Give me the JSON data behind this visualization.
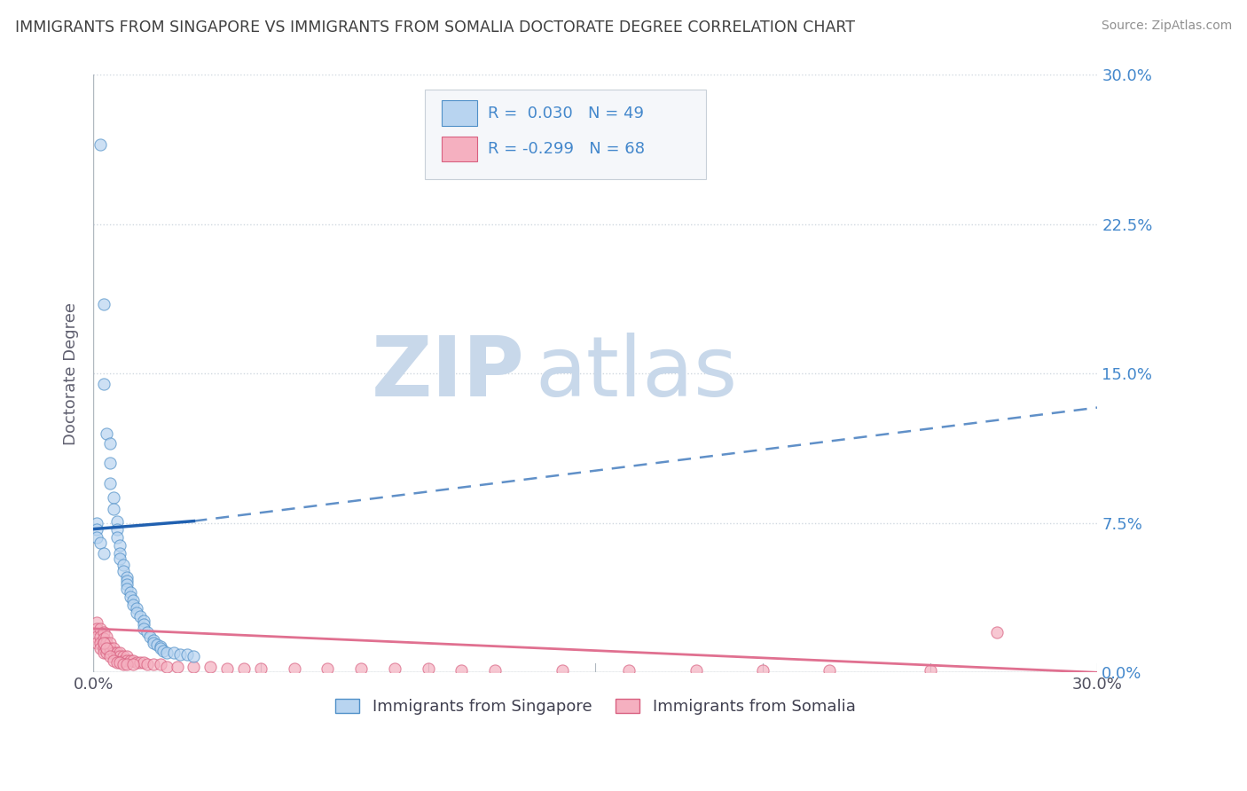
{
  "title": "IMMIGRANTS FROM SINGAPORE VS IMMIGRANTS FROM SOMALIA DOCTORATE DEGREE CORRELATION CHART",
  "source": "Source: ZipAtlas.com",
  "ylabel": "Doctorate Degree",
  "xlim": [
    0.0,
    0.3
  ],
  "ylim": [
    0.0,
    0.3
  ],
  "yticks": [
    0.0,
    0.075,
    0.15,
    0.225,
    0.3
  ],
  "right_ytick_labels": [
    "0.0%",
    "7.5%",
    "15.0%",
    "22.5%",
    "30.0%"
  ],
  "xtick_labels": [
    "0.0%",
    "30.0%"
  ],
  "singapore_color": "#b8d4f0",
  "singapore_edge": "#5090c8",
  "somalia_color": "#f5b0c0",
  "somalia_edge": "#d86080",
  "singapore_R": 0.03,
  "singapore_N": 49,
  "somalia_R": -0.299,
  "somalia_N": 68,
  "singapore_trend_solid_color": "#2060b0",
  "singapore_trend_dash_color": "#6090c8",
  "somalia_trend_color": "#e07090",
  "watermark_zip": "ZIP",
  "watermark_atlas": "atlas",
  "watermark_color": "#c8d8ea",
  "background_color": "#ffffff",
  "grid_color": "#d0d8e0",
  "title_color": "#404040",
  "right_tick_color": "#4488cc",
  "legend_bg": "#f5f7fa",
  "legend_border": "#c8d0d8",
  "singapore_x": [
    0.002,
    0.003,
    0.003,
    0.004,
    0.005,
    0.005,
    0.005,
    0.006,
    0.006,
    0.007,
    0.007,
    0.007,
    0.008,
    0.008,
    0.008,
    0.009,
    0.009,
    0.01,
    0.01,
    0.01,
    0.01,
    0.011,
    0.011,
    0.012,
    0.012,
    0.013,
    0.013,
    0.014,
    0.015,
    0.015,
    0.015,
    0.016,
    0.017,
    0.018,
    0.018,
    0.019,
    0.02,
    0.02,
    0.021,
    0.022,
    0.024,
    0.026,
    0.028,
    0.03,
    0.001,
    0.001,
    0.001,
    0.002,
    0.003
  ],
  "singapore_y": [
    0.265,
    0.185,
    0.145,
    0.12,
    0.115,
    0.105,
    0.095,
    0.088,
    0.082,
    0.076,
    0.072,
    0.068,
    0.064,
    0.06,
    0.057,
    0.054,
    0.051,
    0.048,
    0.046,
    0.044,
    0.042,
    0.04,
    0.038,
    0.036,
    0.034,
    0.032,
    0.03,
    0.028,
    0.026,
    0.024,
    0.022,
    0.02,
    0.018,
    0.016,
    0.015,
    0.014,
    0.013,
    0.012,
    0.011,
    0.01,
    0.01,
    0.009,
    0.009,
    0.008,
    0.075,
    0.072,
    0.068,
    0.065,
    0.06
  ],
  "somalia_x": [
    0.001,
    0.001,
    0.001,
    0.001,
    0.002,
    0.002,
    0.002,
    0.002,
    0.003,
    0.003,
    0.003,
    0.003,
    0.003,
    0.004,
    0.004,
    0.004,
    0.004,
    0.005,
    0.005,
    0.005,
    0.006,
    0.006,
    0.007,
    0.007,
    0.008,
    0.008,
    0.009,
    0.009,
    0.01,
    0.01,
    0.011,
    0.012,
    0.013,
    0.014,
    0.015,
    0.016,
    0.018,
    0.02,
    0.022,
    0.025,
    0.03,
    0.035,
    0.04,
    0.045,
    0.05,
    0.06,
    0.07,
    0.08,
    0.09,
    0.1,
    0.11,
    0.12,
    0.14,
    0.16,
    0.18,
    0.2,
    0.22,
    0.25,
    0.27,
    0.003,
    0.004,
    0.005,
    0.006,
    0.007,
    0.008,
    0.009,
    0.01,
    0.012
  ],
  "somalia_y": [
    0.025,
    0.022,
    0.018,
    0.015,
    0.022,
    0.018,
    0.015,
    0.012,
    0.02,
    0.017,
    0.015,
    0.012,
    0.01,
    0.018,
    0.015,
    0.012,
    0.01,
    0.015,
    0.012,
    0.01,
    0.012,
    0.01,
    0.01,
    0.008,
    0.01,
    0.008,
    0.008,
    0.006,
    0.008,
    0.006,
    0.006,
    0.006,
    0.005,
    0.005,
    0.005,
    0.004,
    0.004,
    0.004,
    0.003,
    0.003,
    0.003,
    0.003,
    0.002,
    0.002,
    0.002,
    0.002,
    0.002,
    0.002,
    0.002,
    0.002,
    0.001,
    0.001,
    0.001,
    0.001,
    0.001,
    0.001,
    0.001,
    0.001,
    0.02,
    0.015,
    0.012,
    0.008,
    0.006,
    0.005,
    0.005,
    0.004,
    0.004,
    0.004
  ]
}
